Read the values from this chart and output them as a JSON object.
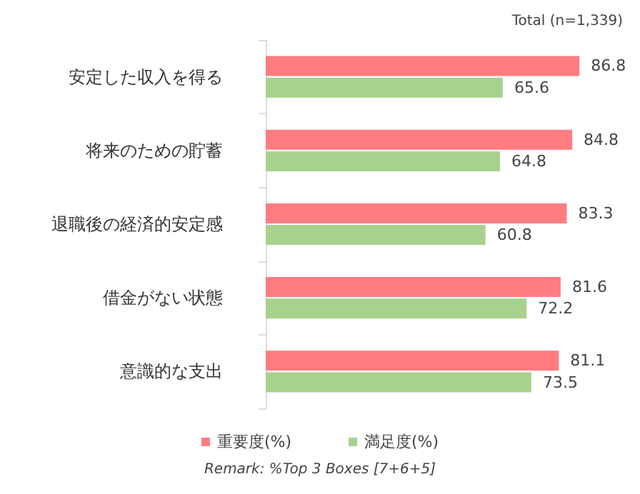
{
  "chart_data": {
    "type": "bar",
    "orientation": "horizontal",
    "categories": [
      "安定した収入を得る",
      "将来のための貯蓄",
      "退職後の経済的安定感",
      "借金がない状態",
      "意識的な支出"
    ],
    "series": [
      {
        "name": "重要度(%)",
        "color": "#ff7c80",
        "values": [
          86.8,
          84.8,
          83.3,
          81.6,
          81.1
        ]
      },
      {
        "name": "満足度(%)",
        "color": "#a9d18e",
        "values": [
          65.6,
          64.8,
          60.8,
          72.2,
          73.5
        ]
      }
    ],
    "tick_labels": "y",
    "data_labels": true,
    "grid": false,
    "legend": "bottom",
    "annotations": [
      "Total (n=1,339)",
      "Remark: %Top 3 Boxes [7+6+5]"
    ]
  }
}
